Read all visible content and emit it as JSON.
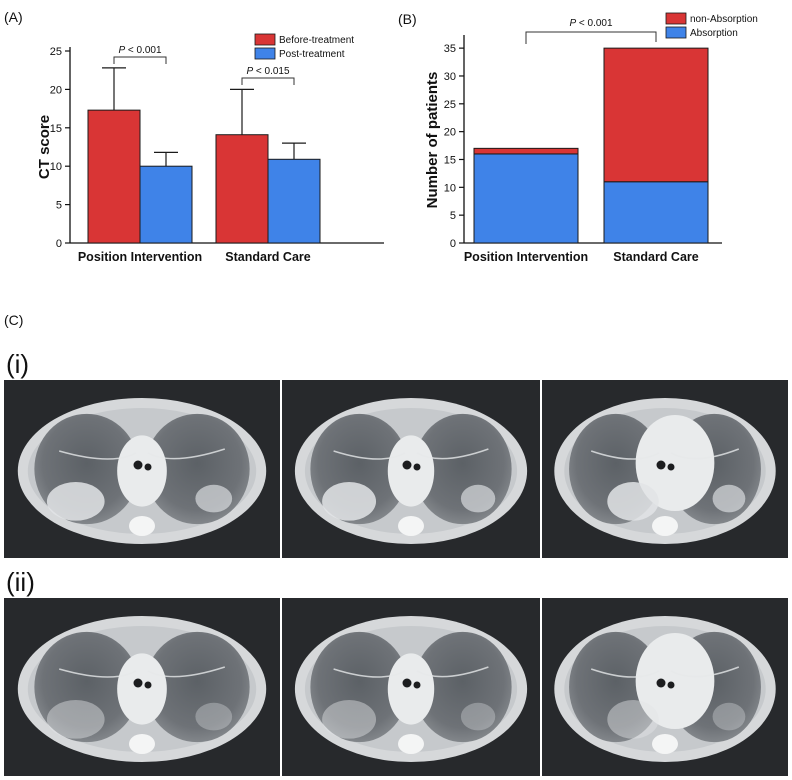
{
  "figure": {
    "panel_labels": {
      "a": "(A)",
      "b": "(B)",
      "c": "(C)",
      "ci": "(i)",
      "cii": "(ii)"
    }
  },
  "colors": {
    "red": "#d93535",
    "blue": "#3f83e8",
    "ct_dark": "#27292c",
    "ct_body": "#d6d8da",
    "ct_lung": "#6a6e73"
  },
  "chart_data": [
    {
      "type": "bar",
      "title": "",
      "ylabel": "CT score",
      "xlabel": "",
      "ylim": [
        0,
        25
      ],
      "yticks": [
        0,
        5,
        10,
        15,
        20,
        25
      ],
      "categories": [
        "Position Intervention",
        "Standard Care"
      ],
      "series": [
        {
          "name": "Before-treatment",
          "color": "#d93535",
          "values": [
            17.3,
            14.1
          ],
          "error": [
            5.5,
            5.9
          ]
        },
        {
          "name": "Post-treatment",
          "color": "#3f83e8",
          "values": [
            10.0,
            10.9
          ],
          "error": [
            1.8,
            2.1
          ]
        }
      ],
      "annotations": [
        {
          "category": 0,
          "text": "P < 0.001"
        },
        {
          "category": 1,
          "text": "P < 0.015"
        }
      ],
      "legend": "top-right"
    },
    {
      "type": "bar",
      "stacked": true,
      "title": "",
      "ylabel": "Number of patients",
      "xlabel": "",
      "ylim": [
        0,
        37
      ],
      "yticks": [
        0,
        5,
        10,
        15,
        20,
        25,
        30,
        35
      ],
      "categories": [
        "Position Intervention",
        "Standard Care"
      ],
      "series": [
        {
          "name": "Absorption",
          "color": "#3f83e8",
          "values": [
            16,
            11
          ]
        },
        {
          "name": "non-Absorption",
          "color": "#d93535",
          "values": [
            1,
            24
          ]
        }
      ],
      "annotations": [
        {
          "text": "P < 0.001"
        }
      ],
      "legend": "top-right"
    }
  ]
}
